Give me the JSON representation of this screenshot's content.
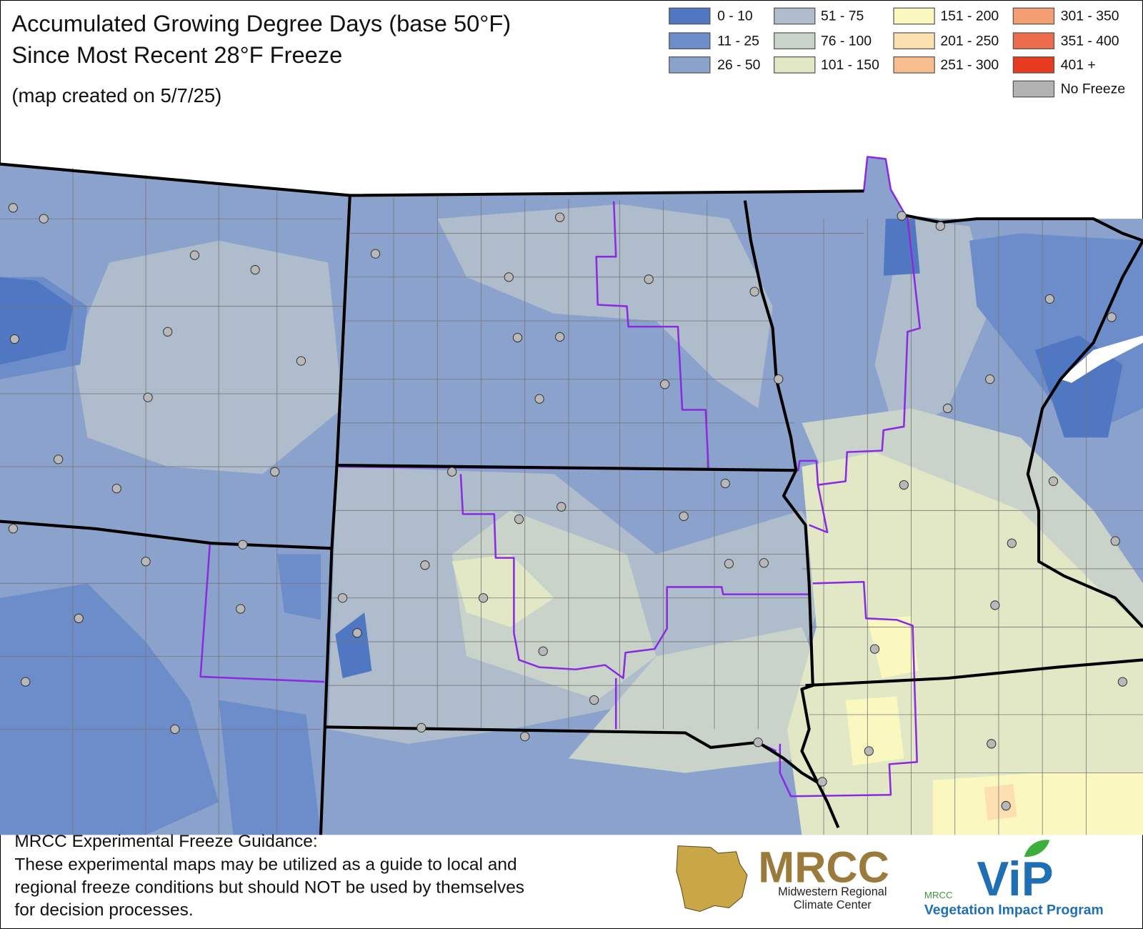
{
  "title": [
    "Accumulated Growing Degree Days (base 50°F)",
    "Since Most Recent 28°F Freeze"
  ],
  "subtitle": "(map created on 5/7/25)",
  "legend": {
    "items": [
      {
        "label": "0 - 10",
        "color": "#4f77c2"
      },
      {
        "label": "11 - 25",
        "color": "#6d8cca"
      },
      {
        "label": "26 - 50",
        "color": "#8ba2cc"
      },
      {
        "label": "51 - 75",
        "color": "#aebccb"
      },
      {
        "label": "76 - 100",
        "color": "#c9d3c9"
      },
      {
        "label": "101 - 150",
        "color": "#e2e8c5"
      },
      {
        "label": "151 - 200",
        "color": "#fbf8bf"
      },
      {
        "label": "201 - 250",
        "color": "#fde0b0"
      },
      {
        "label": "251 - 300",
        "color": "#f8bd8c"
      },
      {
        "label": "301 - 350",
        "color": "#f49e74"
      },
      {
        "label": "351 - 400",
        "color": "#ee6c4e"
      },
      {
        "label": "401 +",
        "color": "#e63b1e"
      },
      {
        "label": "No Freeze",
        "color": "#b2b2b2"
      }
    ]
  },
  "footer": {
    "heading": "MRCC Experimental Freeze Guidance:",
    "lines": [
      "These experimental maps may be utilized as a guide to local and",
      "regional freeze conditions but should NOT be used by themselves",
      "for decision processes."
    ]
  },
  "logos": {
    "mrcc": {
      "name": "MRCC",
      "lines": [
        "Midwestern Regional",
        "Climate Center"
      ]
    },
    "vip": {
      "small": "MRCC",
      "name": "ViP",
      "tagline": "Vegetation Impact Program"
    }
  }
}
